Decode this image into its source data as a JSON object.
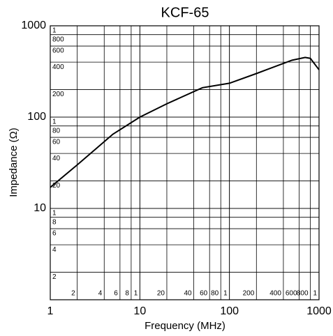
{
  "chart_data": {
    "type": "line",
    "title": "KCF-65",
    "x_label": "Frequency (MHz)",
    "y_label": "Impedance (Ω)",
    "log_x": true,
    "log_y": true,
    "grid": true,
    "xlim": [
      1,
      1000
    ],
    "ylim": [
      1,
      1000
    ],
    "xticks": [
      1,
      10,
      100,
      1000
    ],
    "yticks": [
      10,
      100,
      1000
    ],
    "x_minor_ticks": [
      2,
      4,
      6,
      8,
      {
        "value": 10,
        "label": "1"
      },
      20,
      40,
      60,
      80,
      {
        "value": 100,
        "label": "1"
      },
      200,
      400,
      600,
      800,
      {
        "value": 1000,
        "label": "1"
      }
    ],
    "y_minor_ticks": [
      {
        "value": 1000,
        "label": "1"
      },
      800,
      600,
      400,
      200,
      {
        "value": 100,
        "label": "1"
      },
      80,
      60,
      40,
      20,
      {
        "value": 10,
        "label": "1"
      },
      8,
      6,
      4,
      2
    ],
    "series": [
      {
        "color": "#000000",
        "x": [
          1,
          2,
          5,
          10,
          20,
          50,
          100,
          200,
          500,
          700,
          800,
          1000
        ],
        "values": [
          17,
          30,
          65,
          100,
          140,
          210,
          235,
          300,
          420,
          450,
          440,
          330
        ]
      }
    ]
  }
}
